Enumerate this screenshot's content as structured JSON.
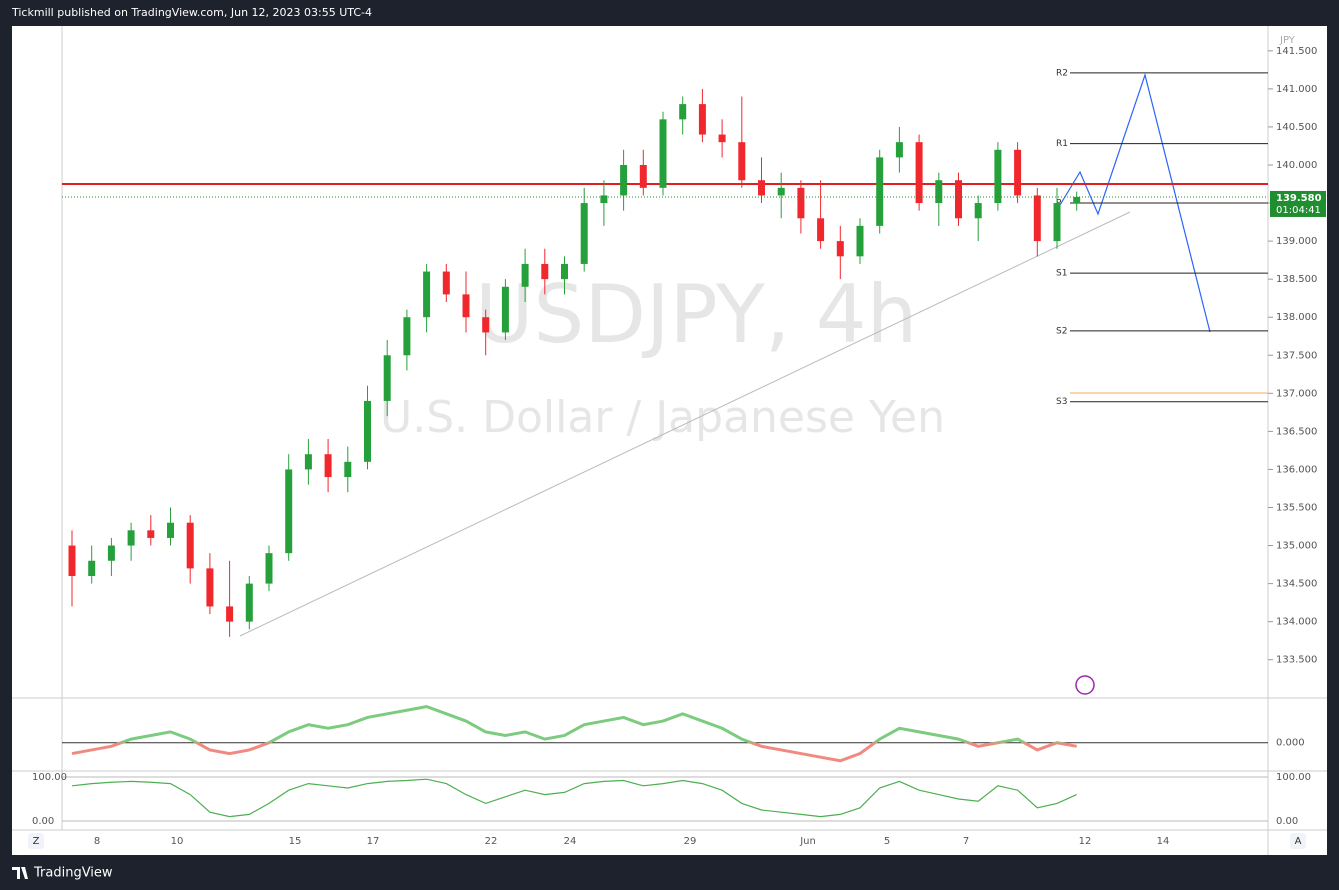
{
  "header": "Tickmill published on TradingView.com, Jun 12, 2023 03:55 UTC-4",
  "footer": "TradingView",
  "buttons": [
    "Z",
    "A"
  ],
  "chart_data": {
    "type": "candlestick",
    "watermark": "USDJPY, 4h",
    "watermark_subtitle": "U.S. Dollar / Japanese Yen",
    "currency": "JPY",
    "up_color": "#26a03a",
    "down_color": "#f0282d",
    "open": [
      135.0,
      134.6,
      134.8,
      135.0,
      135.2,
      135.1,
      135.3,
      134.7,
      134.2,
      134.0,
      134.5,
      134.9,
      136.0,
      136.2,
      135.9,
      136.1,
      136.9,
      137.5,
      138.0,
      138.6,
      138.3,
      138.0,
      137.8,
      138.4,
      138.7,
      138.5,
      138.7,
      139.5,
      139.6,
      140.0,
      139.7,
      140.6,
      140.8,
      140.4,
      140.3,
      139.8,
      139.6,
      139.7,
      139.3,
      139.0,
      138.8,
      139.2,
      140.1,
      140.3,
      139.5,
      139.8,
      139.3,
      139.5,
      140.2,
      139.6,
      139.0,
      139.5
    ],
    "high": [
      135.2,
      135.0,
      135.1,
      135.3,
      135.4,
      135.5,
      135.4,
      134.9,
      134.8,
      134.6,
      135.0,
      136.2,
      136.4,
      136.4,
      136.3,
      137.1,
      137.7,
      138.1,
      138.7,
      138.7,
      138.6,
      138.1,
      138.5,
      138.9,
      138.9,
      138.8,
      139.7,
      139.8,
      140.2,
      140.2,
      140.7,
      140.9,
      141.0,
      140.6,
      140.9,
      140.1,
      139.9,
      139.8,
      139.8,
      139.2,
      139.3,
      140.2,
      140.5,
      140.4,
      139.9,
      139.9,
      139.6,
      140.3,
      140.3,
      139.7,
      139.7,
      139.65
    ],
    "low": [
      134.2,
      134.5,
      134.6,
      134.8,
      135.0,
      135.0,
      134.5,
      134.1,
      133.8,
      133.9,
      134.4,
      134.8,
      135.8,
      135.7,
      135.7,
      136.0,
      136.7,
      137.3,
      137.8,
      138.2,
      137.8,
      137.5,
      137.7,
      138.2,
      138.3,
      138.3,
      138.6,
      139.2,
      139.4,
      139.6,
      139.6,
      140.4,
      140.3,
      140.1,
      139.7,
      139.5,
      139.3,
      139.1,
      138.9,
      138.5,
      138.7,
      139.1,
      139.9,
      139.4,
      139.2,
      139.2,
      139.0,
      139.4,
      139.5,
      138.8,
      138.9,
      139.4
    ],
    "close": [
      134.6,
      134.8,
      135.0,
      135.2,
      135.1,
      135.3,
      134.7,
      134.2,
      134.0,
      134.5,
      134.9,
      136.0,
      136.2,
      135.9,
      136.1,
      136.9,
      137.5,
      138.0,
      138.6,
      138.3,
      138.0,
      137.8,
      138.4,
      138.7,
      138.5,
      138.7,
      139.5,
      139.6,
      140.0,
      139.7,
      140.6,
      140.8,
      140.4,
      140.3,
      139.8,
      139.6,
      139.7,
      139.3,
      139.0,
      138.8,
      139.2,
      140.1,
      140.3,
      139.5,
      139.8,
      139.3,
      139.5,
      140.2,
      139.6,
      139.0,
      139.5,
      139.58
    ],
    "ylim": [
      133.01,
      141.8
    ],
    "yticks": [
      {
        "value": 133.5,
        "label": "133.500"
      },
      {
        "value": 134,
        "label": "134.000"
      },
      {
        "value": 134.5,
        "label": "134.500"
      },
      {
        "value": 135,
        "label": "135.000"
      },
      {
        "value": 135.5,
        "label": "135.500"
      },
      {
        "value": 136,
        "label": "136.000"
      },
      {
        "value": 136.5,
        "label": "136.500"
      },
      {
        "value": 137,
        "label": "137.000"
      },
      {
        "value": 137.5,
        "label": "137.500"
      },
      {
        "value": 138,
        "label": "138.000"
      },
      {
        "value": 138.5,
        "label": "138.500"
      },
      {
        "value": 139,
        "label": "139.000"
      },
      {
        "value": 139.5,
        "label": "139.500"
      },
      {
        "value": 140,
        "label": "140.000"
      },
      {
        "value": 140.5,
        "label": "140.500"
      },
      {
        "value": 141,
        "label": "141.000"
      },
      {
        "value": 141.5,
        "label": "141.500"
      }
    ],
    "xtick_labels": [
      "8",
      "10",
      "15",
      "17",
      "22",
      "24",
      "29",
      "Jun",
      "5",
      "7",
      "12",
      "14"
    ],
    "last_price": 139.58,
    "last_price_label": "139.580",
    "countdown": "01:04:41",
    "last_price_color": "#1e8e2e",
    "resistance_level": 139.75,
    "resistance_color": "#e02020",
    "pivots": [
      {
        "label": "R2",
        "value": 141.21
      },
      {
        "label": "R1",
        "value": 140.28
      },
      {
        "label": "P",
        "value": 139.5
      },
      {
        "label": "S1",
        "value": 138.58
      },
      {
        "label": "S2",
        "value": 137.82
      },
      {
        "label": "S3",
        "value": 136.89
      }
    ],
    "oscillator": {
      "values": [
        -0.3,
        -0.2,
        -0.1,
        0.1,
        0.2,
        0.3,
        0.1,
        -0.2,
        -0.3,
        -0.2,
        0.0,
        0.3,
        0.5,
        0.4,
        0.5,
        0.7,
        0.8,
        0.9,
        1.0,
        0.8,
        0.6,
        0.3,
        0.2,
        0.3,
        0.1,
        0.2,
        0.5,
        0.6,
        0.7,
        0.5,
        0.6,
        0.8,
        0.6,
        0.4,
        0.1,
        -0.1,
        -0.2,
        -0.3,
        -0.4,
        -0.5,
        -0.3,
        0.1,
        0.4,
        0.3,
        0.2,
        0.1,
        -0.1,
        0.0,
        0.1,
        -0.2,
        0.0,
        -0.1
      ],
      "ylim": [
        -0.7,
        1.1
      ],
      "yticks": [
        {
          "value": 0,
          "label": "0.000"
        }
      ],
      "pos_color": "#7ccb7e",
      "neg_color": "#f08a80"
    },
    "stochastic": {
      "values": [
        80,
        85,
        88,
        90,
        88,
        85,
        60,
        20,
        10,
        15,
        40,
        70,
        85,
        80,
        75,
        85,
        90,
        92,
        95,
        85,
        60,
        40,
        55,
        70,
        60,
        65,
        85,
        90,
        92,
        80,
        85,
        92,
        85,
        70,
        40,
        25,
        20,
        15,
        10,
        15,
        30,
        75,
        90,
        70,
        60,
        50,
        45,
        80,
        70,
        30,
        40,
        60
      ],
      "ylim": [
        0,
        100
      ],
      "yticks": [
        {
          "value": 100,
          "label": "100.00"
        },
        {
          "value": 0,
          "label": "0.00"
        }
      ],
      "color": "#4caf50"
    }
  }
}
